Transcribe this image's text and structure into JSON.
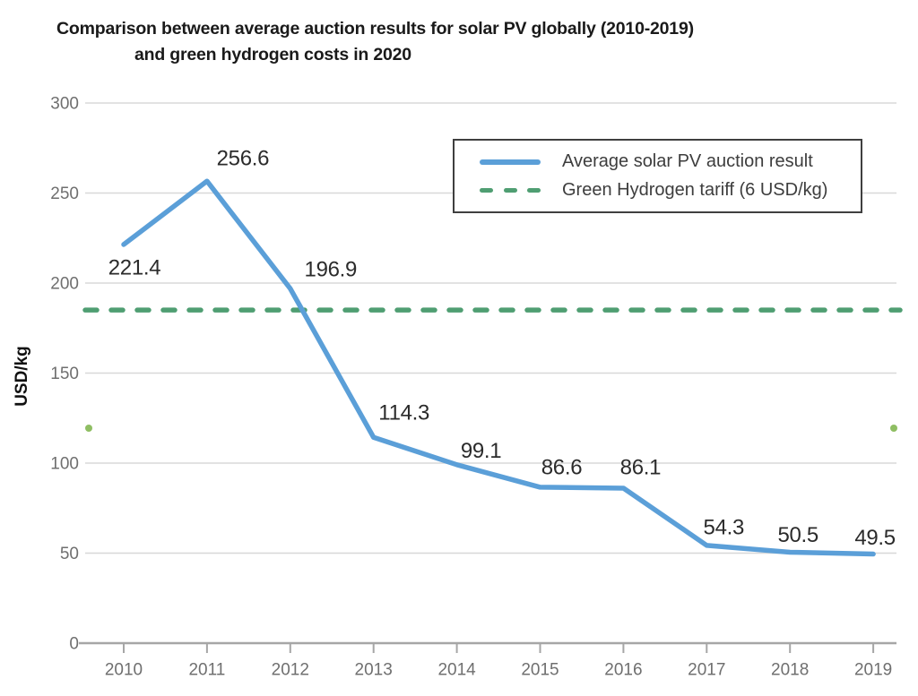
{
  "title": {
    "line1": "Comparison between average auction results for solar PV globally (2010-2019)",
    "line2": "and green hydrogen costs in 2020"
  },
  "chart_data": {
    "type": "line",
    "title": "Comparison between average auction results for solar PV globally (2010-2019) and green hydrogen costs in 2020",
    "xlabel": "",
    "ylabel": "USD/kg",
    "ylim": [
      0,
      300
    ],
    "y_ticks": [
      0,
      50,
      100,
      150,
      200,
      250,
      300
    ],
    "grid": true,
    "legend_position": "upper-right",
    "categories": [
      2010,
      2011,
      2012,
      2013,
      2014,
      2015,
      2016,
      2017,
      2018,
      2019
    ],
    "series": [
      {
        "name": "Average solar PV auction result",
        "type": "line",
        "line_style": "solid",
        "color": "#5B9FD8",
        "values": [
          221.4,
          256.6,
          196.9,
          114.3,
          99.1,
          86.6,
          86.1,
          54.3,
          50.5,
          49.5
        ]
      },
      {
        "name": "Green Hydrogen tariff (6 USD/kg)",
        "type": "horizontal-line",
        "line_style": "dashed",
        "color": "#4F9E72",
        "value_label": "6 USD/kg",
        "axis_value": 185
      }
    ]
  },
  "colors": {
    "solar_line": "#5B9FD8",
    "hydrogen_line": "#4F9E72",
    "stray_dot": "#8FBE63",
    "gridline": "#D8D8D8",
    "axis_line": "#A6A6A6",
    "tick_label": "#6F6F6F",
    "data_label": "#2B2B2B"
  }
}
